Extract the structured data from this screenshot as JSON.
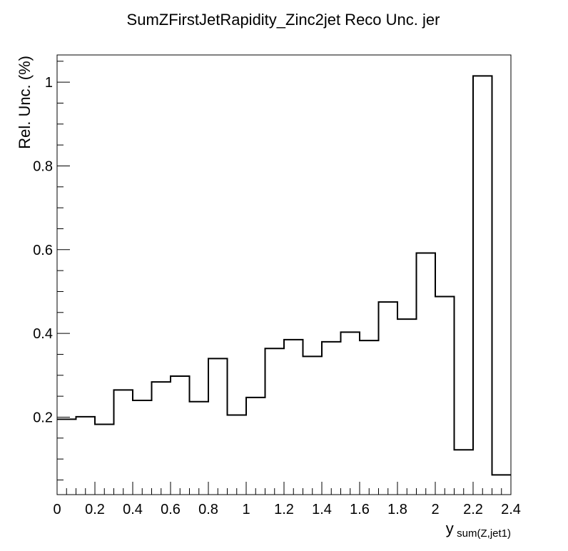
{
  "chart_data": {
    "type": "histogram",
    "title": "SumZFirstJetRapidity_Zinc2jet Reco Unc. jer",
    "xlabel_main": "y",
    "xlabel_sub": "sum(Z,jet1)",
    "ylabel": "Rel. Unc. (%)",
    "xlim": [
      0,
      2.4
    ],
    "ylim": [
      0.015,
      1.065
    ],
    "grid": false,
    "legend": "none",
    "x_tick_labels": [
      "0",
      "0.2",
      "0.4",
      "0.6",
      "0.8",
      "1",
      "1.2",
      "1.4",
      "1.6",
      "1.8",
      "2",
      "2.2",
      "2.4"
    ],
    "y_tick_labels": [
      "0.2",
      "0.4",
      "0.6",
      "0.8",
      "1"
    ],
    "bin_edges": [
      0,
      0.1,
      0.2,
      0.3,
      0.4,
      0.5,
      0.6,
      0.7,
      0.8,
      0.9,
      1.0,
      1.1,
      1.2,
      1.3,
      1.4,
      1.5,
      1.6,
      1.7,
      1.8,
      1.9,
      2.0,
      2.1,
      2.2,
      2.3,
      2.4
    ],
    "values": [
      0.195,
      0.201,
      0.183,
      0.265,
      0.24,
      0.284,
      0.298,
      0.237,
      0.34,
      0.205,
      0.247,
      0.364,
      0.385,
      0.345,
      0.38,
      0.403,
      0.383,
      0.475,
      0.434,
      0.592,
      0.488,
      0.122,
      1.015,
      0.062
    ],
    "line_color": "#000000"
  }
}
